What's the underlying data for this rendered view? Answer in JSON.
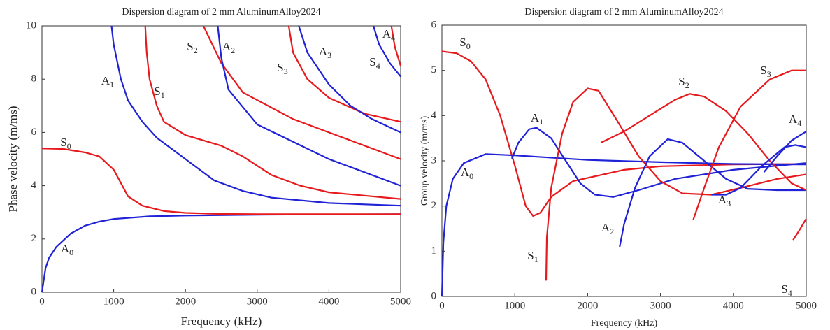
{
  "chart_data": [
    {
      "type": "line",
      "title": "Dispersion diagram of 2 mm AluminumAlloy2024",
      "xlabel": "Frequency (kHz)",
      "ylabel": "Phase velocity (m/ms)",
      "xlim": [
        0,
        5000
      ],
      "ylim": [
        0,
        10
      ],
      "xticks": [
        0,
        1000,
        2000,
        3000,
        4000,
        5000
      ],
      "yticks": [
        0,
        2,
        4,
        6,
        8,
        10
      ],
      "series": [
        {
          "name": "A0",
          "color": "#1f22d6",
          "x": [
            0,
            50,
            100,
            200,
            400,
            600,
            800,
            1000,
            1500,
            2000,
            3000,
            4000,
            5000
          ],
          "values": [
            0,
            0.9,
            1.3,
            1.7,
            2.2,
            2.5,
            2.65,
            2.75,
            2.85,
            2.88,
            2.91,
            2.92,
            2.93
          ]
        },
        {
          "name": "S0",
          "color": "#e8191c",
          "x": [
            0,
            300,
            600,
            800,
            1000,
            1100,
            1200,
            1400,
            1700,
            2000,
            2500,
            3000,
            5000
          ],
          "values": [
            5.4,
            5.38,
            5.25,
            5.1,
            4.6,
            4.1,
            3.6,
            3.25,
            3.05,
            2.98,
            2.94,
            2.93,
            2.93
          ]
        },
        {
          "name": "A1",
          "color": "#1f22d6",
          "x": [
            970,
            1000,
            1100,
            1200,
            1400,
            1600,
            2000,
            2400,
            2800,
            3200,
            4000,
            5000
          ],
          "values": [
            10,
            9.3,
            8,
            7.2,
            6.4,
            5.8,
            5,
            4.2,
            3.8,
            3.55,
            3.35,
            3.25
          ]
        },
        {
          "name": "S1",
          "color": "#e8191c",
          "x": [
            1440,
            1460,
            1500,
            1600,
            1700,
            2000,
            2500,
            2800,
            3200,
            3600,
            4000,
            5000
          ],
          "values": [
            10,
            9,
            8,
            7,
            6.4,
            5.9,
            5.5,
            5.1,
            4.4,
            4,
            3.75,
            3.5
          ]
        },
        {
          "name": "S2",
          "color": "#e8191c",
          "x": [
            2250,
            2500,
            2800,
            3500,
            4000,
            5000
          ],
          "values": [
            10,
            8.6,
            7.5,
            6.5,
            6,
            5
          ]
        },
        {
          "name": "A2",
          "color": "#1f22d6",
          "x": [
            2450,
            2500,
            2600,
            3000,
            4000,
            5000
          ],
          "values": [
            10,
            8.8,
            7.6,
            6.3,
            5,
            4
          ]
        },
        {
          "name": "S3",
          "color": "#e8191c",
          "x": [
            3440,
            3500,
            3700,
            4000,
            4500,
            5000
          ],
          "values": [
            10,
            9,
            8,
            7.3,
            6.7,
            6.4
          ]
        },
        {
          "name": "A3",
          "color": "#1f22d6",
          "x": [
            3580,
            3700,
            4000,
            4300,
            4600,
            5000
          ],
          "values": [
            10,
            9,
            7.8,
            7,
            6.5,
            6
          ]
        },
        {
          "name": "S4",
          "color": "#e8191c",
          "x": [
            4870,
            4920,
            5000
          ],
          "values": [
            10,
            9.2,
            8.5
          ]
        },
        {
          "name": "A4",
          "color": "#1f22d6",
          "x": [
            4620,
            4700,
            4850,
            5000
          ],
          "values": [
            10,
            9.3,
            8.6,
            8.1
          ]
        }
      ]
    },
    {
      "type": "line",
      "title": "Dispersion diagram of 2 mm AluminumAlloy2024",
      "xlabel": "Frequency (kHz)",
      "ylabel": "Group velocity (m/ms)",
      "xlim": [
        0,
        5000
      ],
      "ylim": [
        0,
        6
      ],
      "xticks": [
        0,
        1000,
        2000,
        3000,
        4000,
        5000
      ],
      "yticks": [
        0,
        1,
        2,
        3,
        4,
        5,
        6
      ],
      "series": [
        {
          "name": "S0",
          "color": "#e8191c",
          "x": [
            0,
            200,
            400,
            600,
            800,
            1000,
            1150,
            1250,
            1350,
            1500,
            1800,
            2500,
            3000,
            4000,
            5000
          ],
          "values": [
            5.42,
            5.38,
            5.2,
            4.8,
            4,
            2.9,
            2,
            1.78,
            1.85,
            2.2,
            2.55,
            2.8,
            2.88,
            2.92,
            2.93
          ]
        },
        {
          "name": "A0",
          "color": "#1f22d6",
          "x": [
            0,
            20,
            60,
            150,
            300,
            600,
            1000,
            2000,
            3000,
            4000,
            5000
          ],
          "values": [
            0,
            1.2,
            2,
            2.6,
            2.95,
            3.15,
            3.12,
            3.02,
            2.97,
            2.93,
            2.92
          ]
        },
        {
          "name": "A1",
          "color": "#1f22d6",
          "x": [
            960,
            1050,
            1200,
            1300,
            1500,
            1700,
            1900,
            2100,
            2350,
            2700,
            3200,
            4000,
            5000
          ],
          "values": [
            3.05,
            3.4,
            3.7,
            3.73,
            3.5,
            3,
            2.5,
            2.25,
            2.2,
            2.35,
            2.6,
            2.8,
            2.95
          ]
        },
        {
          "name": "S1",
          "color": "#e8191c",
          "x": [
            1430,
            1440,
            1500,
            1650,
            1800,
            2000,
            2150,
            2400,
            2700,
            3000,
            3300,
            3700,
            4100,
            4600,
            5000
          ],
          "values": [
            0.35,
            1.3,
            2.4,
            3.6,
            4.3,
            4.6,
            4.55,
            3.9,
            3.1,
            2.55,
            2.28,
            2.25,
            2.4,
            2.6,
            2.7
          ]
        },
        {
          "name": "A2",
          "color": "#1f22d6",
          "x": [
            2440,
            2500,
            2650,
            2850,
            3100,
            3300,
            3600,
            3900,
            4200,
            4600,
            5000
          ],
          "values": [
            1.1,
            1.6,
            2.4,
            3.1,
            3.48,
            3.4,
            3,
            2.6,
            2.38,
            2.35,
            2.35
          ]
        },
        {
          "name": "S2",
          "color": "#e8191c",
          "x": [
            2180,
            2500,
            2800,
            3200,
            3400,
            3600,
            3900,
            4200,
            4500,
            4800,
            5000
          ],
          "values": [
            3.4,
            3.65,
            3.95,
            4.35,
            4.48,
            4.42,
            4.1,
            3.6,
            3,
            2.5,
            2.35
          ]
        },
        {
          "name": "S3",
          "color": "#e8191c",
          "x": [
            3450,
            3600,
            3800,
            4100,
            4500,
            4800,
            5000
          ],
          "values": [
            1.7,
            2.4,
            3.3,
            4.2,
            4.8,
            5,
            5
          ]
        },
        {
          "name": "A3",
          "color": "#1f22d6",
          "x": [
            3700,
            3900,
            4100,
            4400,
            4700,
            4850,
            5000
          ],
          "values": [
            2.25,
            2.25,
            2.4,
            2.9,
            3.3,
            3.35,
            3.3
          ]
        },
        {
          "name": "S4",
          "color": "#e8191c",
          "x": [
            4820,
            4900,
            5000
          ],
          "values": [
            1.25,
            1.45,
            1.72
          ]
        },
        {
          "name": "A4",
          "color": "#1f22d6",
          "x": [
            4420,
            4600,
            4800,
            5000
          ],
          "values": [
            2.75,
            3.1,
            3.45,
            3.65
          ]
        }
      ]
    }
  ]
}
